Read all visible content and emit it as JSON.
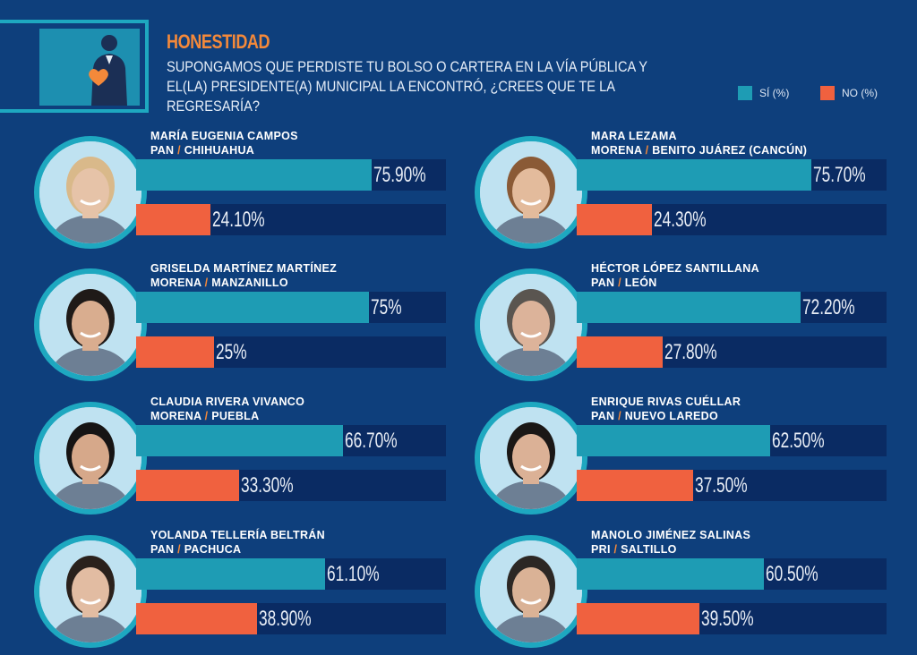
{
  "header": {
    "title": "HONESTIDAD",
    "question": "SUPONGAMOS QUE PERDISTE TU BOLSO O CARTERA EN LA VÍA PÚBLICA Y EL(LA) PRESIDENTE(A) MUNICIPAL LA ENCONTRÓ, ¿CREES QUE TE LA REGRESARÍA?"
  },
  "legend": {
    "si_label": "SÍ (%)",
    "no_label": "NO (%)"
  },
  "colors": {
    "background": "#0e3f7c",
    "si": "#1e9cb4",
    "no": "#f0613f",
    "track": "#0a2b63",
    "accent": "#f4893a",
    "ring": "#1ea8c0"
  },
  "chart_data": {
    "type": "bar",
    "title": "HONESTIDAD",
    "orientation": "horizontal",
    "xlim": [
      0,
      100
    ],
    "series_names": [
      "SÍ (%)",
      "NO (%)"
    ],
    "people": [
      {
        "name": "MARÍA EUGENIA CAMPOS",
        "party": "PAN",
        "city": "CHIHUAHUA",
        "si": 75.9,
        "no": 24.1,
        "si_label": "75.90%",
        "no_label": "24.10%"
      },
      {
        "name": "MARA LEZAMA",
        "party": "MORENA",
        "city": "BENITO JUÁREZ (CANCÚN)",
        "si": 75.7,
        "no": 24.3,
        "si_label": "75.70%",
        "no_label": "24.30%"
      },
      {
        "name": "GRISELDA MARTÍNEZ MARTÍNEZ",
        "party": "MORENA",
        "city": "MANZANILLO",
        "si": 75,
        "no": 25,
        "si_label": "75%",
        "no_label": "25%"
      },
      {
        "name": "HÉCTOR LÓPEZ SANTILLANA",
        "party": "PAN",
        "city": "LEÓN",
        "si": 72.2,
        "no": 27.8,
        "si_label": "72.20%",
        "no_label": "27.80%"
      },
      {
        "name": "CLAUDIA RIVERA VIVANCO",
        "party": "MORENA",
        "city": "PUEBLA",
        "si": 66.7,
        "no": 33.3,
        "si_label": "66.70%",
        "no_label": "33.30%"
      },
      {
        "name": "ENRIQUE RIVAS CUÉLLAR",
        "party": "PAN",
        "city": "NUEVO LAREDO",
        "si": 62.5,
        "no": 37.5,
        "si_label": "62.50%",
        "no_label": "37.50%"
      },
      {
        "name": "YOLANDA TELLERÍA BELTRÁN",
        "party": "PAN",
        "city": "PACHUCA",
        "si": 61.1,
        "no": 38.9,
        "si_label": "61.10%",
        "no_label": "38.90%"
      },
      {
        "name": "MANOLO JIMÉNEZ SALINAS",
        "party": "PRI",
        "city": "SALTILLO",
        "si": 60.5,
        "no": 39.5,
        "si_label": "60.50%",
        "no_label": "39.50%"
      }
    ]
  }
}
